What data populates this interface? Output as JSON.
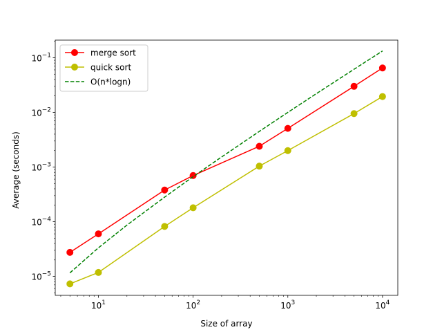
{
  "chart_data": {
    "type": "line",
    "xscale": "log",
    "yscale": "log",
    "xlabel": "Size of array",
    "ylabel": "Average (seconds)",
    "xlim": [
      3.5,
      14500
    ],
    "ylim": [
      4.5e-06,
      0.21
    ],
    "grid": false,
    "legend_position": "top-left",
    "x_ticks": [
      {
        "value": 10,
        "base": "10",
        "exp": "1"
      },
      {
        "value": 100,
        "base": "10",
        "exp": "2"
      },
      {
        "value": 1000,
        "base": "10",
        "exp": "3"
      },
      {
        "value": 10000,
        "base": "10",
        "exp": "4"
      }
    ],
    "y_ticks": [
      {
        "value": 1e-05,
        "base": "10",
        "exp": "−5"
      },
      {
        "value": 0.0001,
        "base": "10",
        "exp": "−4"
      },
      {
        "value": 0.001,
        "base": "10",
        "exp": "−3"
      },
      {
        "value": 0.01,
        "base": "10",
        "exp": "−2"
      },
      {
        "value": 0.1,
        "base": "10",
        "exp": "−1"
      }
    ],
    "series": [
      {
        "name": "merge sort",
        "color": "#ff0000",
        "style": "solid",
        "marker": "circle",
        "x": [
          5,
          10,
          50,
          100,
          500,
          1000,
          5000,
          10000
        ],
        "values": [
          2.75e-05,
          6e-05,
          0.00038,
          0.0007,
          0.0024,
          0.0051,
          0.03,
          0.065
        ]
      },
      {
        "name": "quick sort",
        "color": "#bfbf00",
        "style": "solid",
        "marker": "circle",
        "x": [
          5,
          10,
          50,
          100,
          500,
          1000,
          5000,
          10000
        ],
        "values": [
          7.3e-06,
          1.18e-05,
          8.2e-05,
          0.00018,
          0.00104,
          0.002,
          0.0095,
          0.0195
        ]
      },
      {
        "name": "O(n*logn)",
        "color": "#008000",
        "style": "dashed",
        "marker": "none",
        "x": [
          5,
          10,
          20,
          50,
          100,
          200,
          500,
          1000,
          2000,
          5000,
          10000
        ],
        "values": [
          1.16e-05,
          3.33e-05,
          8.67e-05,
          0.000282,
          0.000667,
          0.00153,
          0.00449,
          0.01,
          0.022,
          0.0615,
          0.133
        ]
      }
    ]
  }
}
